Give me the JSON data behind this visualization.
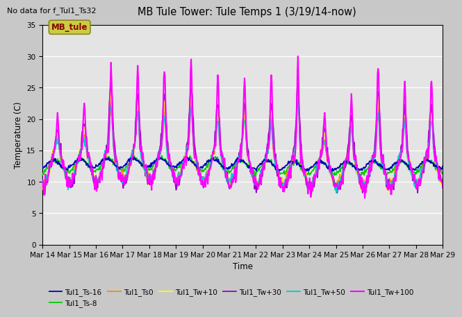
{
  "title": "MB Tule Tower: Tule Temps 1 (3/19/14-now)",
  "no_data_text": "No data for f_Tul1_Ts32",
  "xlabel": "Time",
  "ylabel": "Temperature (C)",
  "ylim": [
    0,
    35
  ],
  "yticks": [
    0,
    5,
    10,
    15,
    20,
    25,
    30,
    35
  ],
  "fig_facecolor": "#c8c8c8",
  "plot_bg_color": "#e8e8e8",
  "legend_box_label": "MB_tule",
  "legend_box_facecolor": "#cccc44",
  "legend_box_edgecolor": "#888822",
  "legend_box_text_color": "#880000",
  "series": [
    {
      "label": "Tul1_Ts-16",
      "color": "#0000bb",
      "lw": 1.3,
      "zorder": 4
    },
    {
      "label": "Tul1_Ts-8",
      "color": "#00cc00",
      "lw": 1.3,
      "zorder": 3
    },
    {
      "label": "Tul1_Ts0",
      "color": "#ff8800",
      "lw": 1.3,
      "zorder": 3
    },
    {
      "label": "Tul1_Tw+10",
      "color": "#ffff00",
      "lw": 1.3,
      "zorder": 3
    },
    {
      "label": "Tul1_Tw+30",
      "color": "#9900cc",
      "lw": 1.3,
      "zorder": 3
    },
    {
      "label": "Tul1_Tw+50",
      "color": "#00cccc",
      "lw": 1.3,
      "zorder": 3
    },
    {
      "label": "Tul1_Tw+100",
      "color": "#ff00ff",
      "lw": 1.5,
      "zorder": 5
    }
  ],
  "xticklabels": [
    "Mar 14",
    "Mar 15",
    "Mar 16",
    "Mar 17",
    "Mar 18",
    "Mar 19",
    "Mar 20",
    "Mar 21",
    "Mar 22",
    "Mar 23",
    "Mar 24",
    "Mar 25",
    "Mar 26",
    "Mar 27",
    "Mar 28",
    "Mar 29"
  ],
  "n_days": 15,
  "pts_per_day": 48,
  "seed": 7
}
